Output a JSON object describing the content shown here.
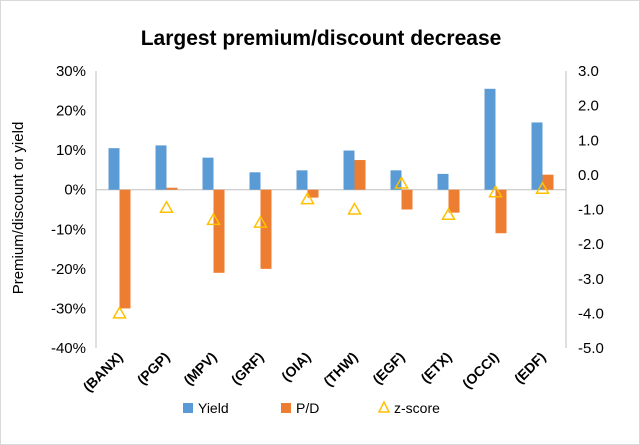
{
  "chart_data": {
    "type": "bar",
    "title": "Largest premium/discount decrease",
    "ylabel": "Premium/discount or yield",
    "categories": [
      "(BANX)",
      "(PGP)",
      "(MPV)",
      "(GRF)",
      "(OIA)",
      "(THW)",
      "(EGF)",
      "(ETX)",
      "(OCCI)",
      "(EDF)"
    ],
    "ylim": [
      -40,
      30
    ],
    "y_ticks": [
      -40,
      -30,
      -20,
      -10,
      0,
      10,
      20,
      30
    ],
    "y_tick_labels": [
      "-40%",
      "-30%",
      "-20%",
      "-10%",
      "0%",
      "10%",
      "20%",
      "30%"
    ],
    "y2lim": [
      -5.0,
      3.0
    ],
    "y2_ticks": [
      -5,
      -4,
      -3,
      -2,
      -1,
      0,
      1,
      2,
      3
    ],
    "y2_tick_labels": [
      "-5.0",
      "-4.0",
      "-3.0",
      "-2.0",
      "-1.0",
      "0.0",
      "1.0",
      "2.0",
      "3.0"
    ],
    "grid": false,
    "legend_position": "bottom",
    "series": [
      {
        "name": "Yield",
        "type": "bar",
        "axis": "left",
        "color": "#5b9bd5",
        "values": [
          10.5,
          11.2,
          8.1,
          4.4,
          4.9,
          9.9,
          4.9,
          4.0,
          25.5,
          17.0
        ]
      },
      {
        "name": "P/D",
        "type": "bar",
        "axis": "left",
        "color": "#ed7d31",
        "values": [
          -30.0,
          0.5,
          -21.0,
          -20.0,
          -2.0,
          7.5,
          -5.0,
          -5.8,
          -11.0,
          3.8
        ]
      },
      {
        "name": "z-score",
        "type": "marker",
        "marker": "triangle-open",
        "axis": "right",
        "color": "#ffc000",
        "values": [
          -4.0,
          -0.95,
          -1.3,
          -1.38,
          -0.7,
          -1.0,
          -0.25,
          -1.15,
          -0.5,
          -0.4
        ]
      }
    ]
  }
}
